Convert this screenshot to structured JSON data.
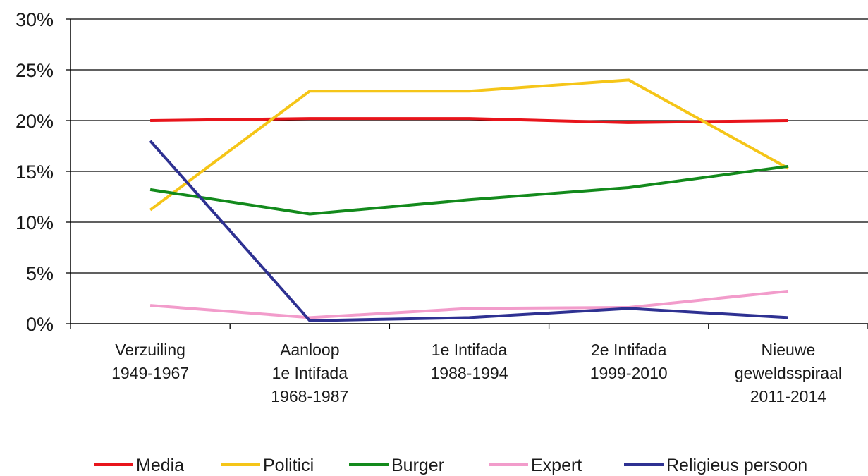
{
  "chart_data": {
    "type": "line",
    "categories": [
      [
        "Verzuiling",
        "1949-1967"
      ],
      [
        "Aanloop",
        "1e Intifada",
        "1968-1987"
      ],
      [
        "1e Intifada",
        "1988-1994"
      ],
      [
        "2e Intifada",
        "1999-2010"
      ],
      [
        "Nieuwe",
        "geweldsspiraal",
        "2011-2014"
      ]
    ],
    "y_ticks": [
      "0%",
      "5%",
      "10%",
      "15%",
      "20%",
      "25%",
      "30%"
    ],
    "ylim": [
      0,
      30
    ],
    "grid": true,
    "legend_position": "bottom",
    "series": [
      {
        "name": "Media",
        "color": "#e8141b",
        "values": [
          20.0,
          20.2,
          20.2,
          19.8,
          20.0
        ]
      },
      {
        "name": "Politici",
        "color": "#f5c518",
        "values": [
          11.2,
          22.9,
          22.9,
          24.0,
          15.3
        ]
      },
      {
        "name": "Burger",
        "color": "#138a1c",
        "values": [
          13.2,
          10.8,
          12.2,
          13.4,
          15.5
        ]
      },
      {
        "name": "Expert",
        "color": "#f29ccb",
        "values": [
          1.8,
          0.6,
          1.5,
          1.6,
          3.2
        ]
      },
      {
        "name": "Religieus persoon",
        "color": "#2e3192",
        "values": [
          18.0,
          0.3,
          0.6,
          1.5,
          0.6
        ]
      }
    ]
  }
}
